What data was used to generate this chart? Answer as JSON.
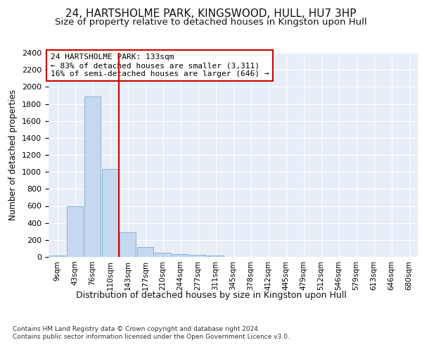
{
  "title_line1": "24, HARTSHOLME PARK, KINGSWOOD, HULL, HU7 3HP",
  "title_line2": "Size of property relative to detached houses in Kingston upon Hull",
  "xlabel": "Distribution of detached houses by size in Kingston upon Hull",
  "ylabel": "Number of detached properties",
  "footer_line1": "Contains HM Land Registry data © Crown copyright and database right 2024.",
  "footer_line2": "Contains public sector information licensed under the Open Government Licence v3.0.",
  "categories": [
    "9sqm",
    "43sqm",
    "76sqm",
    "110sqm",
    "143sqm",
    "177sqm",
    "210sqm",
    "244sqm",
    "277sqm",
    "311sqm",
    "345sqm",
    "378sqm",
    "412sqm",
    "445sqm",
    "479sqm",
    "512sqm",
    "546sqm",
    "579sqm",
    "613sqm",
    "646sqm",
    "680sqm"
  ],
  "values": [
    20,
    600,
    1890,
    1035,
    290,
    120,
    50,
    30,
    28,
    18,
    0,
    0,
    0,
    0,
    0,
    0,
    0,
    0,
    0,
    0,
    0
  ],
  "bar_color": "#c5d8f0",
  "bar_edge_color": "#7aaad0",
  "redline_x": 3.5,
  "annotation_line1": "24 HARTSHOLME PARK: 133sqm",
  "annotation_line2": "← 83% of detached houses are smaller (3,311)",
  "annotation_line3": "16% of semi-detached houses are larger (646) →",
  "ylim": [
    0,
    2400
  ],
  "yticks": [
    0,
    200,
    400,
    600,
    800,
    1000,
    1200,
    1400,
    1600,
    1800,
    2000,
    2200,
    2400
  ],
  "fig_bg_color": "#ffffff",
  "plot_bg_color": "#e8eef8",
  "grid_color": "#ffffff",
  "annotation_box_facecolor": "#ffffff",
  "annotation_box_edgecolor": "#cc0000"
}
